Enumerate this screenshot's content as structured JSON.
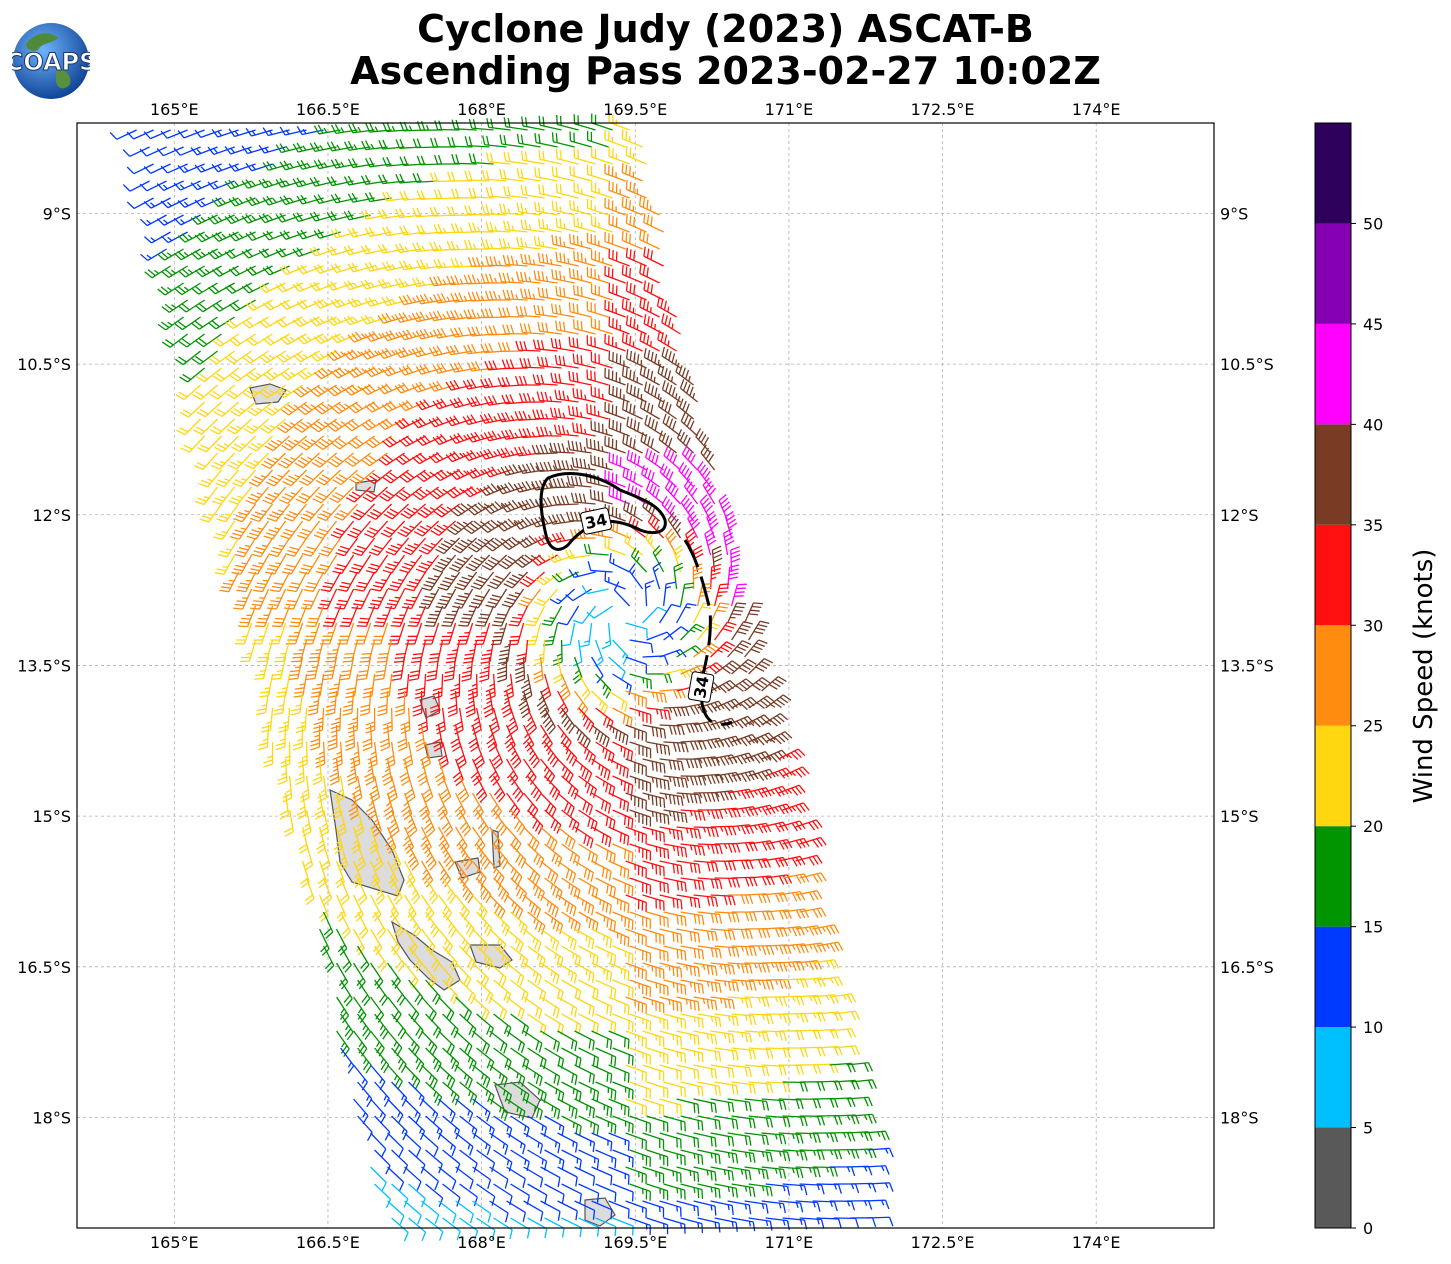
{
  "title_line1": "Cyclone Judy (2023) ASCAT-B",
  "title_line2": "Ascending Pass 2023-02-27 10:02Z",
  "logo_text": "COAPS",
  "map": {
    "lon_ticks": [
      "165°E",
      "166.5°E",
      "168°E",
      "169.5°E",
      "171°E",
      "172.5°E",
      "174°E"
    ],
    "lat_ticks": [
      "9°S",
      "10.5°S",
      "12°S",
      "13.5°S",
      "15°S",
      "16.5°S",
      "18°S"
    ],
    "lon_range": [
      164.05,
      175.15
    ],
    "lat_range": [
      -19.1,
      -8.1
    ],
    "gridlines": true,
    "contour_label": "34",
    "center_lon": 169.4,
    "center_lat": -13.0
  },
  "colorbar": {
    "label": "Wind Speed (knots)",
    "tick_labels": [
      "0",
      "5",
      "10",
      "15",
      "20",
      "25",
      "30",
      "35",
      "40",
      "45",
      "50"
    ],
    "bins": [
      {
        "min": 0,
        "max": 5,
        "color": "#595959"
      },
      {
        "min": 5,
        "max": 10,
        "color": "#00bfff"
      },
      {
        "min": 10,
        "max": 15,
        "color": "#0039ff"
      },
      {
        "min": 15,
        "max": 20,
        "color": "#009400"
      },
      {
        "min": 20,
        "max": 25,
        "color": "#ffd60f"
      },
      {
        "min": 25,
        "max": 30,
        "color": "#ff8c0f"
      },
      {
        "min": 30,
        "max": 35,
        "color": "#ff0f0f"
      },
      {
        "min": 35,
        "max": 40,
        "color": "#7a3b24"
      },
      {
        "min": 40,
        "max": 45,
        "color": "#ff00ff"
      },
      {
        "min": 45,
        "max": 50,
        "color": "#8600b3"
      },
      {
        "min": 50,
        "max": 55,
        "color": "#2c005b"
      }
    ]
  }
}
